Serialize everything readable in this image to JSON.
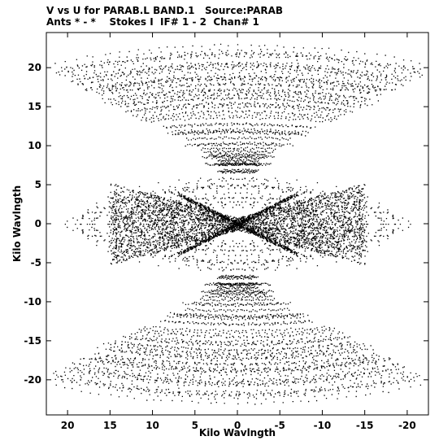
{
  "title_line_1": "V vs U for PARAB.L BAND.1   Source:PARAB",
  "title_line_2": "Ants * - *    Stokes I  IF# 1 - 2  Chan# 1",
  "chart_data": {
    "type": "scatter",
    "xlabel": "Kilo Wavlngth",
    "ylabel": "Kilo Wavlngth",
    "xlim": [
      22.5,
      -22.5
    ],
    "ylim": [
      -24.5,
      24.5
    ],
    "x_ticks": [
      20,
      15,
      10,
      5,
      0,
      -5,
      -10,
      -15,
      -20
    ],
    "y_ticks": [
      20,
      15,
      10,
      5,
      0,
      -5,
      -10,
      -15,
      -20
    ],
    "x_tick_labels": [
      "20",
      "15",
      "10",
      "5",
      "0",
      "-5",
      "-10",
      "-15",
      "-20"
    ],
    "y_tick_labels": [
      "20",
      "15",
      "10",
      "5",
      "0",
      "-5",
      "-10",
      "-15",
      "-20"
    ],
    "grid": false,
    "marker_color": "#000000",
    "point_count_approx": 12000,
    "shape": "symmetric hourglass: near-horizontal streaks over |V| 6-23 (coverage narrowing toward |U| 2 near |V| 9 and widening to |U| 22 at |V| 23), oval bands within |U| 19, |V| 6 with a dense central wedge (|V| < 0.3|U|) and a cross of diagonal tracks at the centre",
    "u_extent": [
      -22,
      22
    ],
    "v_extent": [
      -23.5,
      23.5
    ]
  }
}
